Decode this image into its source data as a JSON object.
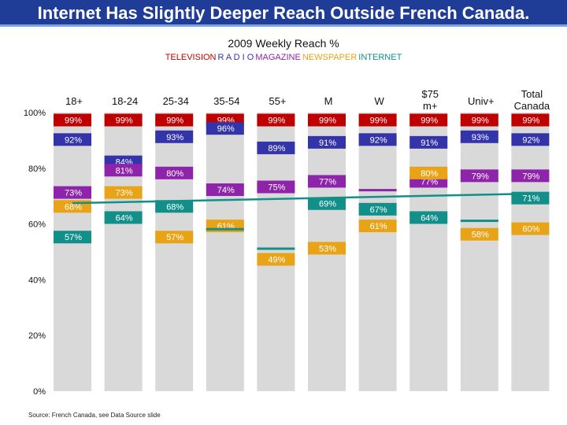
{
  "title": "Internet Has Slightly Deeper Reach Outside French Canada.",
  "subtitle": "2009 Weekly Reach %",
  "legend": [
    {
      "label": "TELEVISION",
      "color": "#c00000"
    },
    {
      "label": "R A D I O",
      "color": "#3333aa"
    },
    {
      "label": "MAGAZINE",
      "color": "#8e24aa"
    },
    {
      "label": "NEWSPAPER",
      "color": "#e8a317"
    },
    {
      "label": "INTERNET",
      "color": "#138f8a"
    }
  ],
  "source": "Source: French Canada, see Data Source slide",
  "chart_data": {
    "type": "bar",
    "title": "2009 Weekly Reach %",
    "categories": [
      "18+",
      "18-24",
      "25-34",
      "35-54",
      "55+",
      "M",
      "W",
      "$75 m+",
      "Univ+",
      "Total Canada"
    ],
    "ylim": [
      0,
      100
    ],
    "yticks": [
      "0%",
      "20%",
      "40%",
      "60%",
      "80%",
      "100%"
    ],
    "ytick_values": [
      0,
      20,
      40,
      60,
      80,
      100
    ],
    "series": [
      {
        "name": "TELEVISION",
        "color": "#c00000",
        "values": [
          99,
          99,
          99,
          99,
          99,
          99,
          99,
          99,
          99,
          99
        ],
        "labels": [
          "99%",
          "99%",
          "99%",
          "99%",
          "99%",
          "99%",
          "99%",
          "99%",
          "99%",
          "99%"
        ]
      },
      {
        "name": "RADIO",
        "color": "#3333aa",
        "values": [
          92,
          84,
          93,
          96,
          89,
          91,
          92,
          91,
          93,
          92
        ],
        "labels": [
          "92%",
          "84%",
          "93%",
          "96%",
          "89%",
          "91%",
          "92%",
          "91%",
          "93%",
          "92%"
        ]
      },
      {
        "name": "MAGAZINE",
        "color": "#8e24aa",
        "values": [
          73,
          81,
          80,
          74,
          75,
          77,
          72,
          77,
          79,
          79
        ],
        "labels": [
          "73%",
          "81%",
          "80%",
          "74%",
          "75%",
          "77%",
          "",
          "77%",
          "79%",
          "79%"
        ]
      },
      {
        "name": "NEWSPAPER",
        "color": "#e8a317",
        "values": [
          68,
          73,
          57,
          61,
          49,
          53,
          61,
          80,
          58,
          60
        ],
        "labels": [
          "68%",
          "73%",
          "57%",
          "61%",
          "49%",
          "53%",
          "61%",
          "80%",
          "58%",
          "60%"
        ]
      },
      {
        "name": "INTERNET",
        "color": "#138f8a",
        "values": [
          57,
          64,
          68,
          58,
          51,
          69,
          67,
          64,
          61,
          71
        ],
        "labels": [
          "57%",
          "64%",
          "68%",
          "",
          "",
          "69%",
          "67%",
          "64%",
          "",
          "71%"
        ]
      }
    ],
    "trend_line": {
      "name": "Internet reach trend",
      "values": [
        67.5,
        71
      ]
    }
  }
}
